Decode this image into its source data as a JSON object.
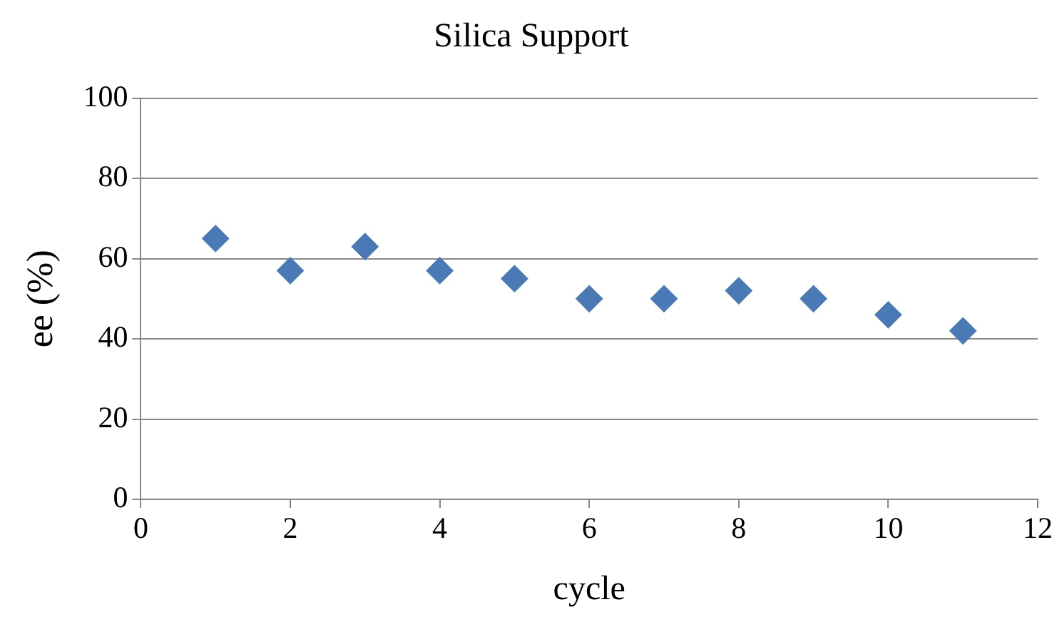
{
  "chart_data": {
    "type": "scatter",
    "title": "Silica Support",
    "xlabel": "cycle",
    "ylabel": "ee (%)",
    "x": [
      1,
      2,
      3,
      4,
      5,
      6,
      7,
      8,
      9,
      10,
      11
    ],
    "series": [
      {
        "color": "#4a7ab5",
        "values": [
          65,
          57,
          63,
          57,
          55,
          50,
          50,
          52,
          50,
          46,
          42
        ]
      }
    ],
    "xlim": [
      0,
      12
    ],
    "xticks": [
      0,
      2,
      4,
      6,
      8,
      10,
      12
    ],
    "ylim": [
      0,
      100
    ],
    "yticks": [
      0,
      20,
      40,
      60,
      80,
      100
    ],
    "grid": "y",
    "legend": false,
    "marker": "diamond"
  }
}
